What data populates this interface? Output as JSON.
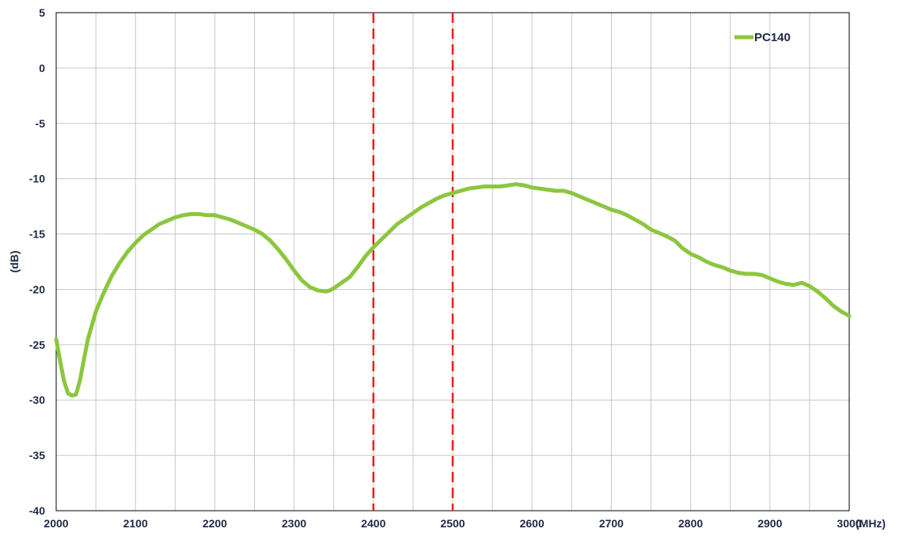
{
  "chart_data": {
    "type": "line",
    "title": "",
    "xlabel": "(MHz)",
    "ylabel": "(dB)",
    "xlim": [
      2000,
      3000
    ],
    "ylim": [
      -40,
      5
    ],
    "x_ticks": [
      2000,
      2100,
      2200,
      2300,
      2400,
      2500,
      2600,
      2700,
      2800,
      2900,
      3000
    ],
    "y_ticks": [
      5,
      0,
      -5,
      -10,
      -15,
      -20,
      -25,
      -30,
      -35,
      -40
    ],
    "x_minor_step": 50,
    "grid": true,
    "legend_position": "top-right",
    "markers": [
      2400,
      2500
    ],
    "series": [
      {
        "name": "PC140",
        "color": "#8cc63f",
        "x": [
          2000,
          2005,
          2010,
          2015,
          2020,
          2025,
          2030,
          2035,
          2040,
          2050,
          2060,
          2070,
          2080,
          2090,
          2100,
          2110,
          2120,
          2130,
          2140,
          2150,
          2160,
          2170,
          2180,
          2190,
          2200,
          2210,
          2220,
          2230,
          2240,
          2250,
          2260,
          2270,
          2280,
          2290,
          2300,
          2310,
          2320,
          2330,
          2340,
          2345,
          2350,
          2360,
          2370,
          2380,
          2390,
          2400,
          2410,
          2420,
          2430,
          2440,
          2450,
          2460,
          2470,
          2480,
          2490,
          2500,
          2510,
          2520,
          2530,
          2540,
          2550,
          2560,
          2570,
          2580,
          2590,
          2600,
          2610,
          2620,
          2630,
          2640,
          2650,
          2660,
          2670,
          2680,
          2690,
          2700,
          2710,
          2720,
          2730,
          2740,
          2750,
          2760,
          2770,
          2780,
          2790,
          2800,
          2810,
          2820,
          2830,
          2840,
          2850,
          2860,
          2870,
          2880,
          2890,
          2900,
          2910,
          2920,
          2930,
          2940,
          2950,
          2960,
          2970,
          2980,
          2990,
          3000
        ],
        "y": [
          -24.5,
          -26.5,
          -28.3,
          -29.4,
          -29.6,
          -29.5,
          -28.2,
          -26.3,
          -24.5,
          -22.0,
          -20.3,
          -18.8,
          -17.6,
          -16.6,
          -15.8,
          -15.1,
          -14.6,
          -14.1,
          -13.8,
          -13.5,
          -13.3,
          -13.2,
          -13.2,
          -13.3,
          -13.3,
          -13.5,
          -13.7,
          -14.0,
          -14.3,
          -14.6,
          -15.0,
          -15.6,
          -16.4,
          -17.3,
          -18.3,
          -19.2,
          -19.8,
          -20.1,
          -20.2,
          -20.1,
          -19.9,
          -19.4,
          -18.9,
          -18.0,
          -17.0,
          -16.2,
          -15.5,
          -14.8,
          -14.1,
          -13.6,
          -13.1,
          -12.6,
          -12.2,
          -11.8,
          -11.5,
          -11.3,
          -11.1,
          -10.9,
          -10.8,
          -10.7,
          -10.7,
          -10.7,
          -10.6,
          -10.5,
          -10.6,
          -10.8,
          -10.9,
          -11.0,
          -11.1,
          -11.1,
          -11.3,
          -11.6,
          -11.9,
          -12.2,
          -12.5,
          -12.8,
          -13.0,
          -13.3,
          -13.7,
          -14.1,
          -14.6,
          -14.9,
          -15.2,
          -15.6,
          -16.3,
          -16.8,
          -17.1,
          -17.5,
          -17.8,
          -18.0,
          -18.3,
          -18.5,
          -18.6,
          -18.6,
          -18.7,
          -19.0,
          -19.3,
          -19.5,
          -19.6,
          -19.4,
          -19.7,
          -20.2,
          -20.8,
          -21.5,
          -22.0,
          -22.4
        ]
      }
    ]
  }
}
